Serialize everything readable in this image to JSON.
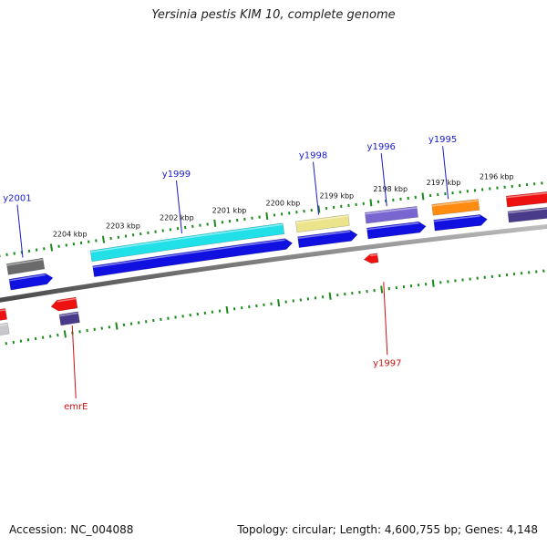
{
  "title": "Yersinia pestis KIM 10, complete genome",
  "footer": {
    "accession": "Accession: NC_004088",
    "topology": "Topology: circular; Length: 4,600,755 bp; Genes: 4,148"
  },
  "ticks": [
    {
      "label": "2204 kbp",
      "t": 0.115
    },
    {
      "label": "2203 kbp",
      "t": 0.21
    },
    {
      "label": "2202 kbp",
      "t": 0.306
    },
    {
      "label": "2201 kbp",
      "t": 0.4
    },
    {
      "label": "2200 kbp",
      "t": 0.496
    },
    {
      "label": "2199 kbp",
      "t": 0.592
    },
    {
      "label": "2198 kbp",
      "t": 0.688
    },
    {
      "label": "2197 kbp",
      "t": 0.783
    },
    {
      "label": "2196 kbp",
      "t": 0.878
    }
  ],
  "genes": [
    {
      "name": "y2001",
      "strand": "+",
      "t1": 0.03,
      "t2": 0.095,
      "color": "#6a6a6a",
      "cds": "#1010e0",
      "t_label": 0.06
    },
    {
      "name": "y1999",
      "strand": "+",
      "t1": 0.18,
      "t2": 0.525,
      "color": "#22e0e8",
      "cds": "#1010e0",
      "t_label": 0.345
    },
    {
      "name": "y1998",
      "strand": "+",
      "t1": 0.548,
      "t2": 0.642,
      "color": "#ece48a",
      "cds": "#1010e0",
      "t_label": 0.59
    },
    {
      "name": "y1996",
      "strand": "+",
      "t1": 0.672,
      "t2": 0.765,
      "color": "#7a66d0",
      "cds": "#1010e0",
      "t_label": 0.712
    },
    {
      "name": "y1995",
      "strand": "+",
      "t1": 0.792,
      "t2": 0.875,
      "color": "#ff8c10",
      "cds": "#1010e0",
      "t_label": 0.822
    },
    {
      "name": "",
      "strand": "+",
      "t1": 0.925,
      "t2": 1.05,
      "color": "#ee1111",
      "cds": "#4a3a8a",
      "t_label": null
    },
    {
      "name": "",
      "strand": "-",
      "t1": -0.05,
      "t2": 0.015,
      "color": "#ee1111",
      "cds": "#c8c8cc",
      "t_label": null
    },
    {
      "name": "emrE",
      "strand": "-",
      "t1": 0.108,
      "t2": 0.142,
      "color": "#ee1111",
      "cds": "#4a3a8a",
      "t_label": 0.128
    },
    {
      "name": "y1997",
      "strand": "-",
      "t1": 0.672,
      "t2": 0.685,
      "color": "#ee1111",
      "cds": null,
      "t_label": 0.69
    }
  ]
}
